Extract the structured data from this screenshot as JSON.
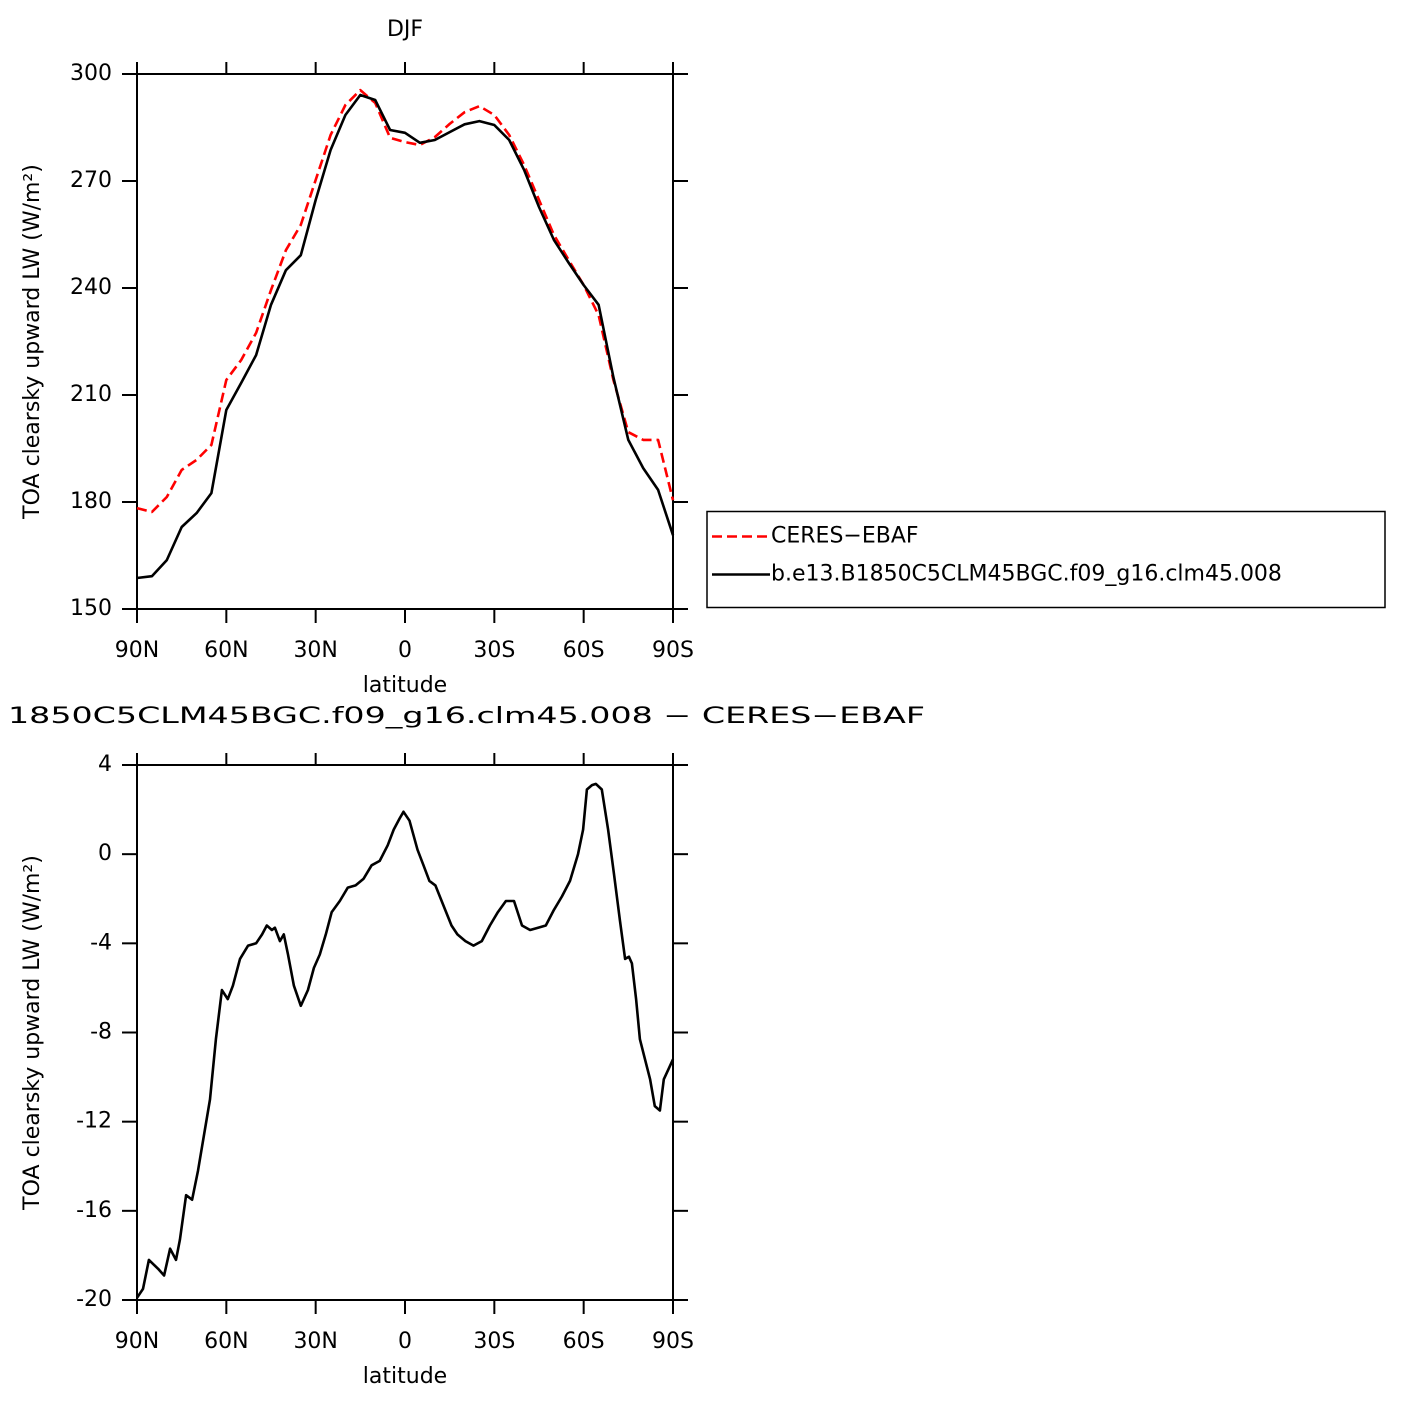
{
  "chart_data": [
    {
      "type": "line",
      "title": "DJF",
      "xlabel": "latitude",
      "ylabel": "TOA clearsky upward LW (W/m²)",
      "xlim": [
        90,
        -90
      ],
      "xticks": [
        {
          "value": 90,
          "label": "90N"
        },
        {
          "value": 60,
          "label": "60N"
        },
        {
          "value": 30,
          "label": "30N"
        },
        0,
        {
          "value": -30,
          "label": "30S"
        },
        {
          "value": -60,
          "label": "60S"
        },
        {
          "value": -90,
          "label": "90S"
        }
      ],
      "ylim": [
        150,
        300
      ],
      "yticks": [
        150,
        180,
        210,
        240,
        270,
        300
      ],
      "legend": "right",
      "x": [
        90,
        85,
        80,
        75,
        70,
        65,
        60,
        55,
        50,
        45,
        40,
        35,
        30,
        25,
        20,
        15,
        10,
        5,
        0,
        -5,
        -10,
        -15,
        -20,
        -25,
        -30,
        -35,
        -40,
        -45,
        -50,
        -55,
        -60,
        -65,
        -70,
        -75,
        -80,
        -85,
        -90
      ],
      "series": [
        {
          "name": "CERES−EBAF",
          "color": "#ff0000",
          "linestyle": "dashed",
          "values": [
            178.3,
            177.2,
            181.4,
            189,
            191.8,
            196,
            214.2,
            219.8,
            227.4,
            239.4,
            250.6,
            257.7,
            270.3,
            282.9,
            291.3,
            295.5,
            291.9,
            282.1,
            280.9,
            280.1,
            282.3,
            286,
            289.3,
            291,
            288.5,
            282.9,
            274.5,
            264.7,
            254.9,
            247.8,
            240.8,
            232.4,
            214.2,
            199.6,
            197.4,
            197.4,
            180.5
          ]
        },
        {
          "name": "b.e13.B1850C5CLM45BGC.f09_g16.clm45.008",
          "color": "#000000",
          "linestyle": "solid",
          "values": [
            158.7,
            159.2,
            163.7,
            173,
            176.9,
            182.5,
            205.8,
            213.4,
            221.2,
            235.3,
            245,
            249.2,
            264.7,
            278.7,
            288.5,
            294.1,
            292.7,
            284.3,
            283.5,
            280.7,
            281.5,
            283.7,
            285.9,
            286.8,
            285.7,
            281.5,
            273.1,
            262.7,
            253.5,
            247,
            240.8,
            235.3,
            215,
            197.4,
            189.5,
            183.4,
            170.7
          ]
        }
      ]
    },
    {
      "type": "line",
      "title": "1850C5CLM45BGC.f09_g16.clm45.008 − CERES−EBAF",
      "xlabel": "latitude",
      "ylabel": "TOA clearsky upward LW (W/m²)",
      "xlim": [
        90,
        -90
      ],
      "xticks": [
        {
          "value": 90,
          "label": "90N"
        },
        {
          "value": 60,
          "label": "60N"
        },
        {
          "value": 30,
          "label": "30N"
        },
        0,
        {
          "value": -30,
          "label": "30S"
        },
        {
          "value": -60,
          "label": "60S"
        },
        {
          "value": -90,
          "label": "90S"
        }
      ],
      "ylim": [
        -20,
        4
      ],
      "yticks": [
        -20,
        -16,
        -12,
        -8,
        -4,
        0,
        4
      ],
      "x": [
        90,
        88,
        86,
        82.9,
        80.9,
        78.9,
        76.9,
        75.6,
        73.5,
        71.5,
        69.5,
        67.5,
        65.5,
        63.5,
        61.5,
        59.5,
        57.8,
        55.4,
        52.7,
        50,
        48,
        46.4,
        44.7,
        43.7,
        42,
        40.7,
        39.3,
        37.3,
        35,
        32.6,
        30.6,
        28.6,
        26.6,
        24.6,
        21.9,
        19.2,
        16.6,
        13.9,
        11.2,
        8.5,
        5.8,
        3.8,
        1.8,
        0.5,
        -1.5,
        -4.2,
        -6.2,
        -8.2,
        -10.2,
        -12.9,
        -15.6,
        -17.6,
        -20.3,
        -23,
        -25.8,
        -28.5,
        -31.2,
        -33.9,
        -36.6,
        -39.3,
        -42,
        -44.7,
        -47.3,
        -50,
        -52.7,
        -55.4,
        -58.1,
        -59.8,
        -61.1,
        -62.8,
        -64.1,
        -66.1,
        -68.2,
        -70.2,
        -72.2,
        -73.9,
        -75.2,
        -76.2,
        -77.6,
        -78.9,
        -80.6,
        -82.3,
        -83.9,
        -85.6,
        -86.9,
        -88.3,
        -90
      ],
      "series": [
        {
          "color": "#000000",
          "linestyle": "solid",
          "values": [
            -19.9,
            -19.5,
            -18.2,
            -18.6,
            -18.9,
            -17.7,
            -18.2,
            -17.3,
            -15.3,
            -15.5,
            -14.2,
            -12.6,
            -11,
            -8.3,
            -6.1,
            -6.5,
            -5.9,
            -4.7,
            -4.1,
            -4,
            -3.6,
            -3.2,
            -3.4,
            -3.3,
            -3.9,
            -3.6,
            -4.5,
            -5.9,
            -6.8,
            -6.1,
            -5.1,
            -4.5,
            -3.6,
            -2.6,
            -2.1,
            -1.5,
            -1.4,
            -1.1,
            -0.5,
            -0.3,
            0.4,
            1.1,
            1.6,
            1.9,
            1.5,
            0.2,
            -0.5,
            -1.2,
            -1.4,
            -2.3,
            -3.2,
            -3.6,
            -3.9,
            -4.1,
            -3.9,
            -3.2,
            -2.6,
            -2.1,
            -2.1,
            -3.2,
            -3.4,
            -3.3,
            -3.2,
            -2.5,
            -1.9,
            -1.2,
            0,
            1.1,
            2.9,
            3.1,
            3.15,
            2.9,
            1.1,
            -0.9,
            -3,
            -4.7,
            -4.6,
            -4.9,
            -6.5,
            -8.3,
            -9.2,
            -10.1,
            -11.3,
            -11.5,
            -10.1,
            -9.7,
            -9.2
          ]
        }
      ]
    }
  ]
}
